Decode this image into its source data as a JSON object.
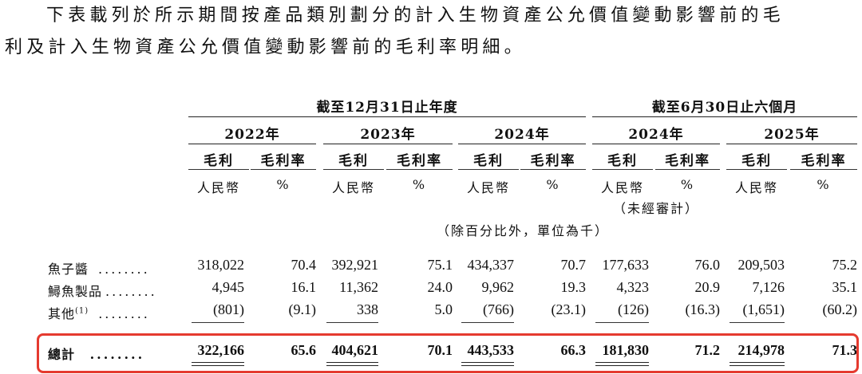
{
  "intro": {
    "line1": "下表載列於所示期間按產品類別劃分的計入生物資產公允價值變動影響前的毛",
    "line2": "利及計入生物資產公允價值變動影響前的毛利率明細。"
  },
  "table": {
    "group_headers": [
      "截至12月31日止年度",
      "截至6月30日止六個月"
    ],
    "years": [
      "2022年",
      "2023年",
      "2024年",
      "2024年",
      "2025年"
    ],
    "col_heads": [
      "毛利",
      "毛利率"
    ],
    "units": [
      "人民幣",
      "%"
    ],
    "unaudited": "（未經審計）",
    "unit_note": "（除百分比外，單位為千）",
    "dots": "........",
    "rows": [
      {
        "label": "魚子醬",
        "sup": "",
        "values": [
          "318,022",
          "70.4",
          "392,921",
          "75.1",
          "434,337",
          "70.7",
          "177,633",
          "76.0",
          "209,503",
          "75.2"
        ]
      },
      {
        "label": "鱘魚製品",
        "sup": "",
        "values": [
          "4,945",
          "16.1",
          "11,362",
          "24.0",
          "9,962",
          "19.3",
          "4,323",
          "20.9",
          "7,126",
          "35.1"
        ]
      },
      {
        "label": "其他",
        "sup": "(1)",
        "values": [
          "(801)",
          "(9.1)",
          "338",
          "5.0",
          "(766)",
          "(23.1)",
          "(126)",
          "(16.3)",
          "(1,651)",
          "(60.2)"
        ]
      }
    ],
    "total": {
      "label": "總計",
      "values": [
        "322,166",
        "65.6",
        "404,621",
        "70.1",
        "443,533",
        "66.3",
        "181,830",
        "71.2",
        "214,978",
        "71.3"
      ]
    }
  },
  "colors": {
    "highlight": "#e53a2f"
  }
}
